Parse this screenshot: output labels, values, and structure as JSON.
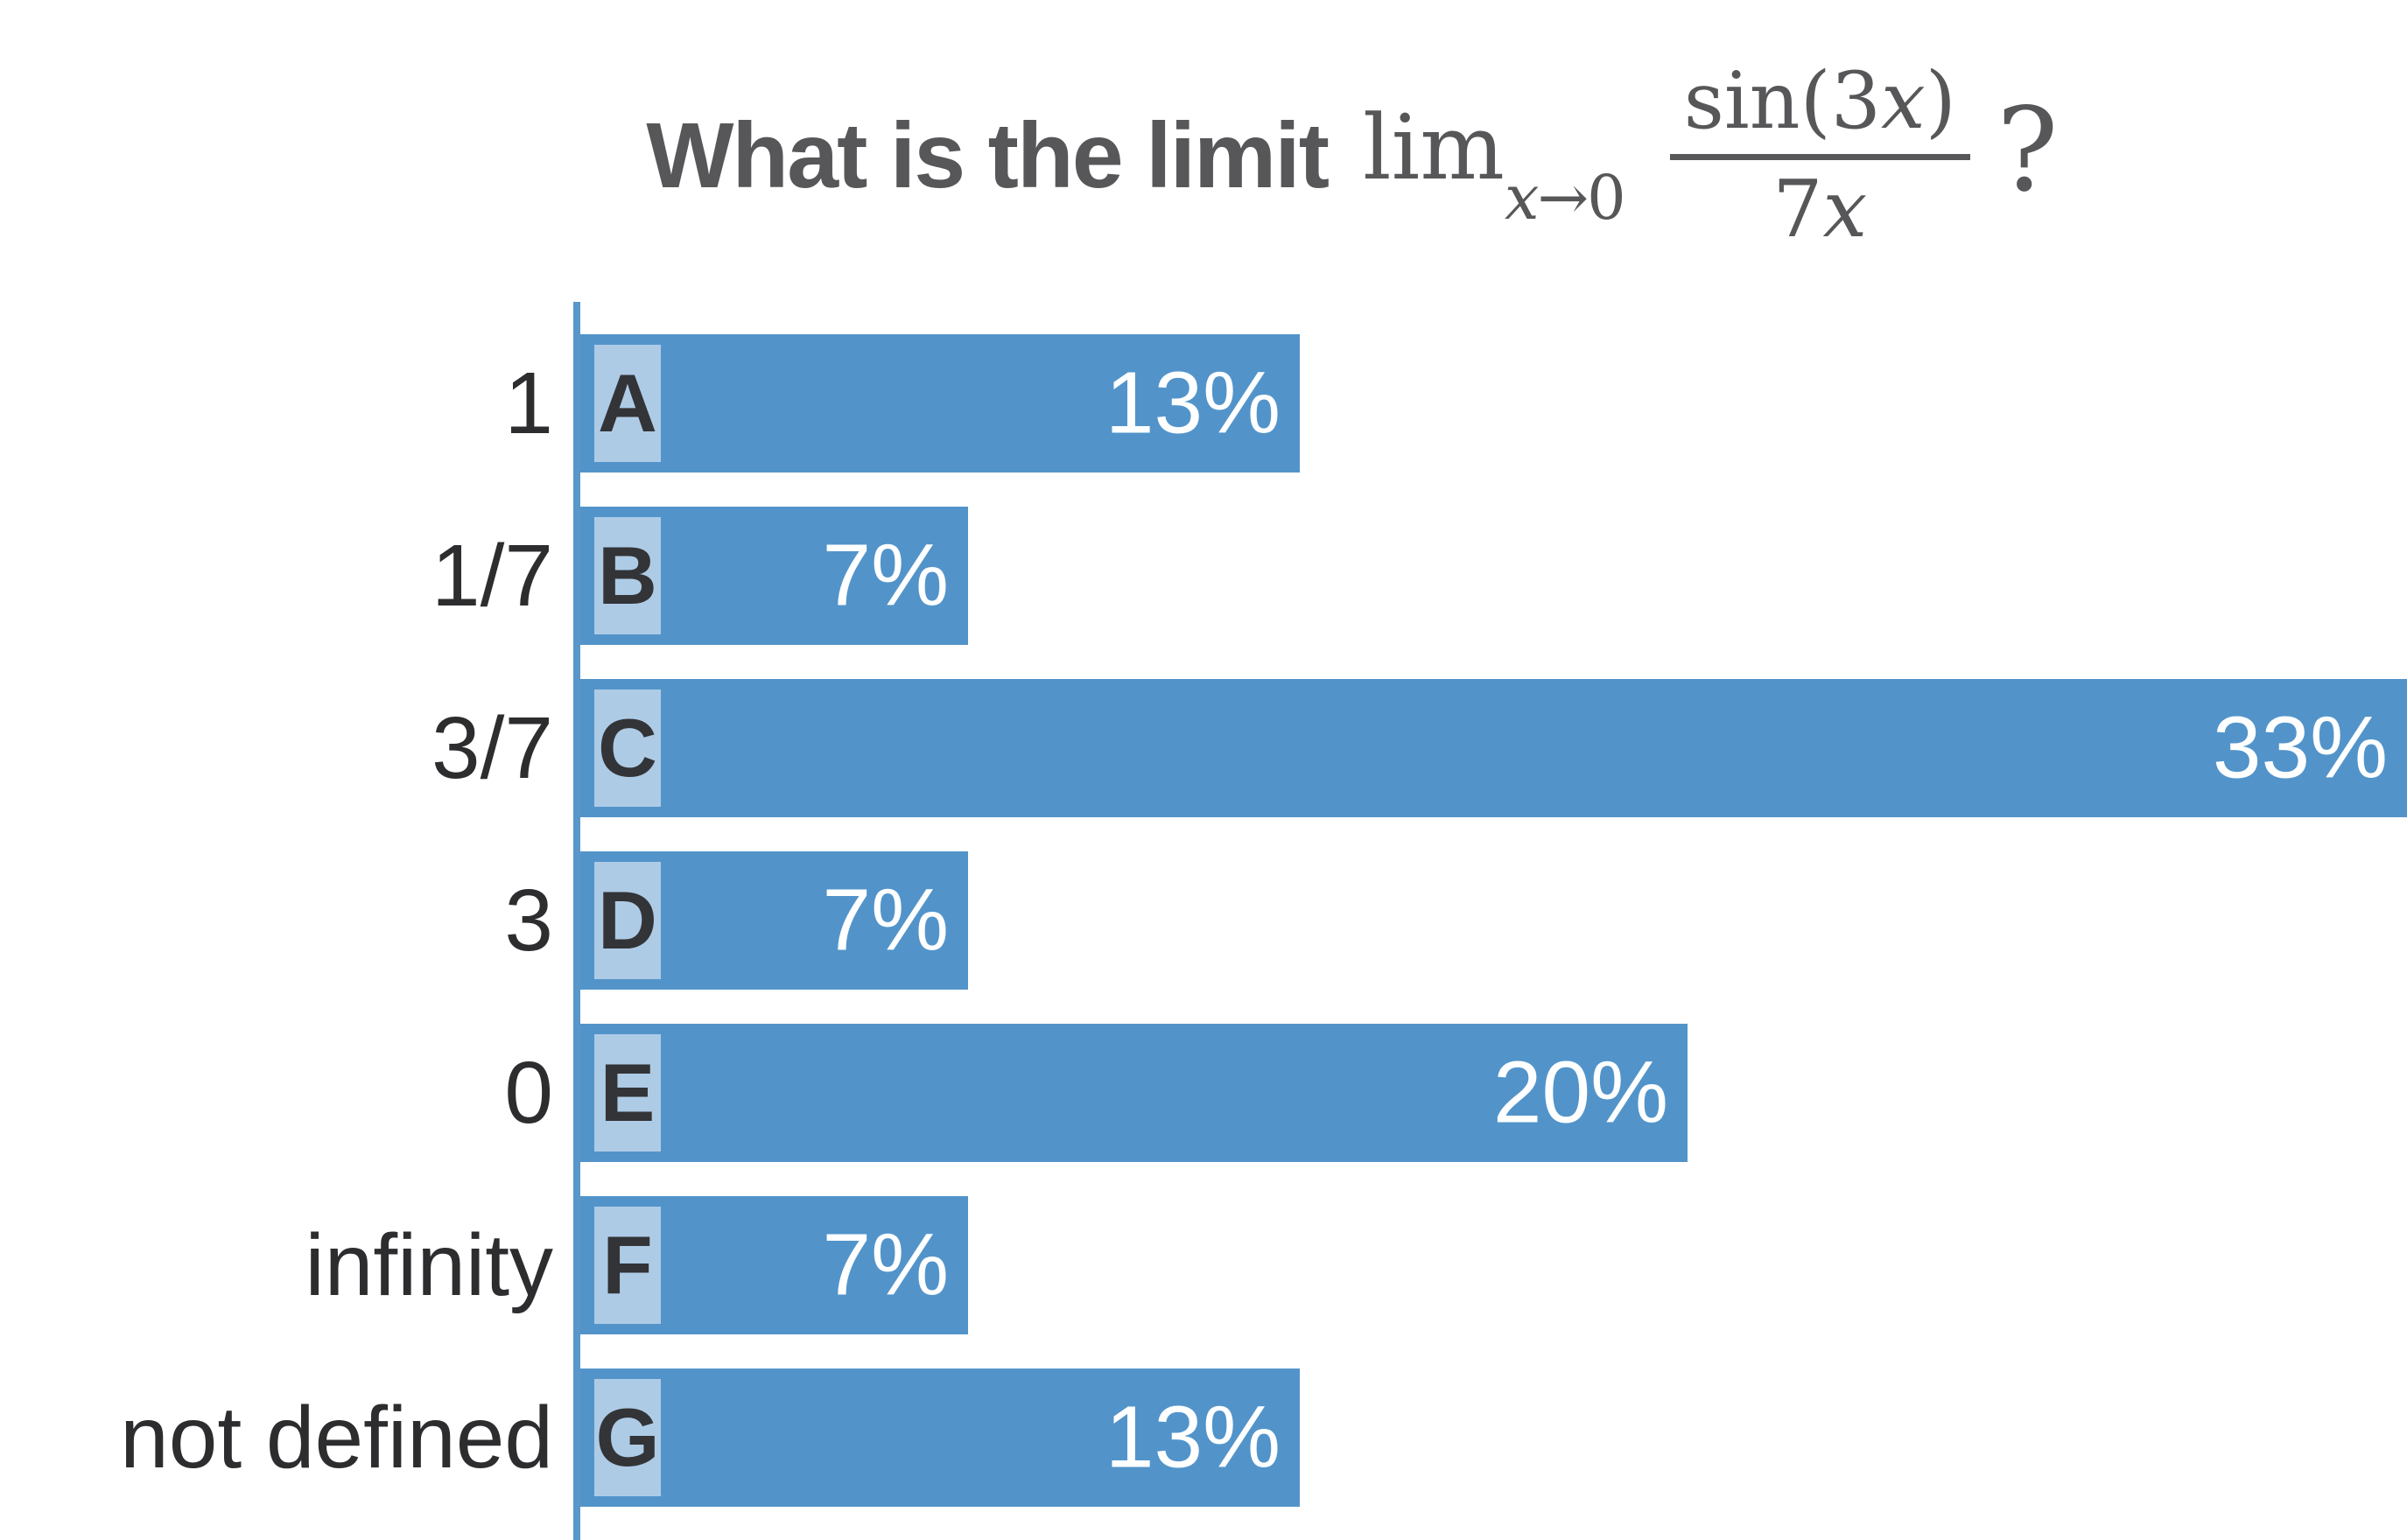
{
  "title": {
    "text": "What is the limit",
    "math": {
      "lim": "lim",
      "sub_var": "x",
      "sub_arrow": "→",
      "sub_target": "0",
      "num_prefix": "sin(3",
      "num_var": "x",
      "num_suffix": ")",
      "den_prefix": "7",
      "den_var": "x",
      "qmark": "?"
    }
  },
  "chart_data": {
    "type": "bar",
    "orientation": "horizontal",
    "title": "What is the limit lim_{x→0} sin(3x)/(7x) ?",
    "categories": [
      "1",
      "1/7",
      "3/7",
      "3",
      "0",
      "infinity",
      "not defined"
    ],
    "letters": [
      "A",
      "B",
      "C",
      "D",
      "E",
      "F",
      "G"
    ],
    "values": [
      13,
      7,
      33,
      7,
      20,
      7,
      13
    ],
    "value_labels": [
      "13%",
      "7%",
      "33%",
      "7%",
      "20%",
      "7%",
      "13%"
    ],
    "xlabel": "",
    "ylabel": "",
    "xmax": 33,
    "grid": false,
    "legend": false,
    "value_label_position": "inside-right"
  },
  "colors": {
    "background": "#ffffff",
    "bar": "#5294ca",
    "chip": "#aecbe6",
    "chip_letter": "#333437",
    "axis": "#5996ca",
    "label": "#2d2d2f",
    "title": "#57575a",
    "value_text": "#ffffff"
  }
}
